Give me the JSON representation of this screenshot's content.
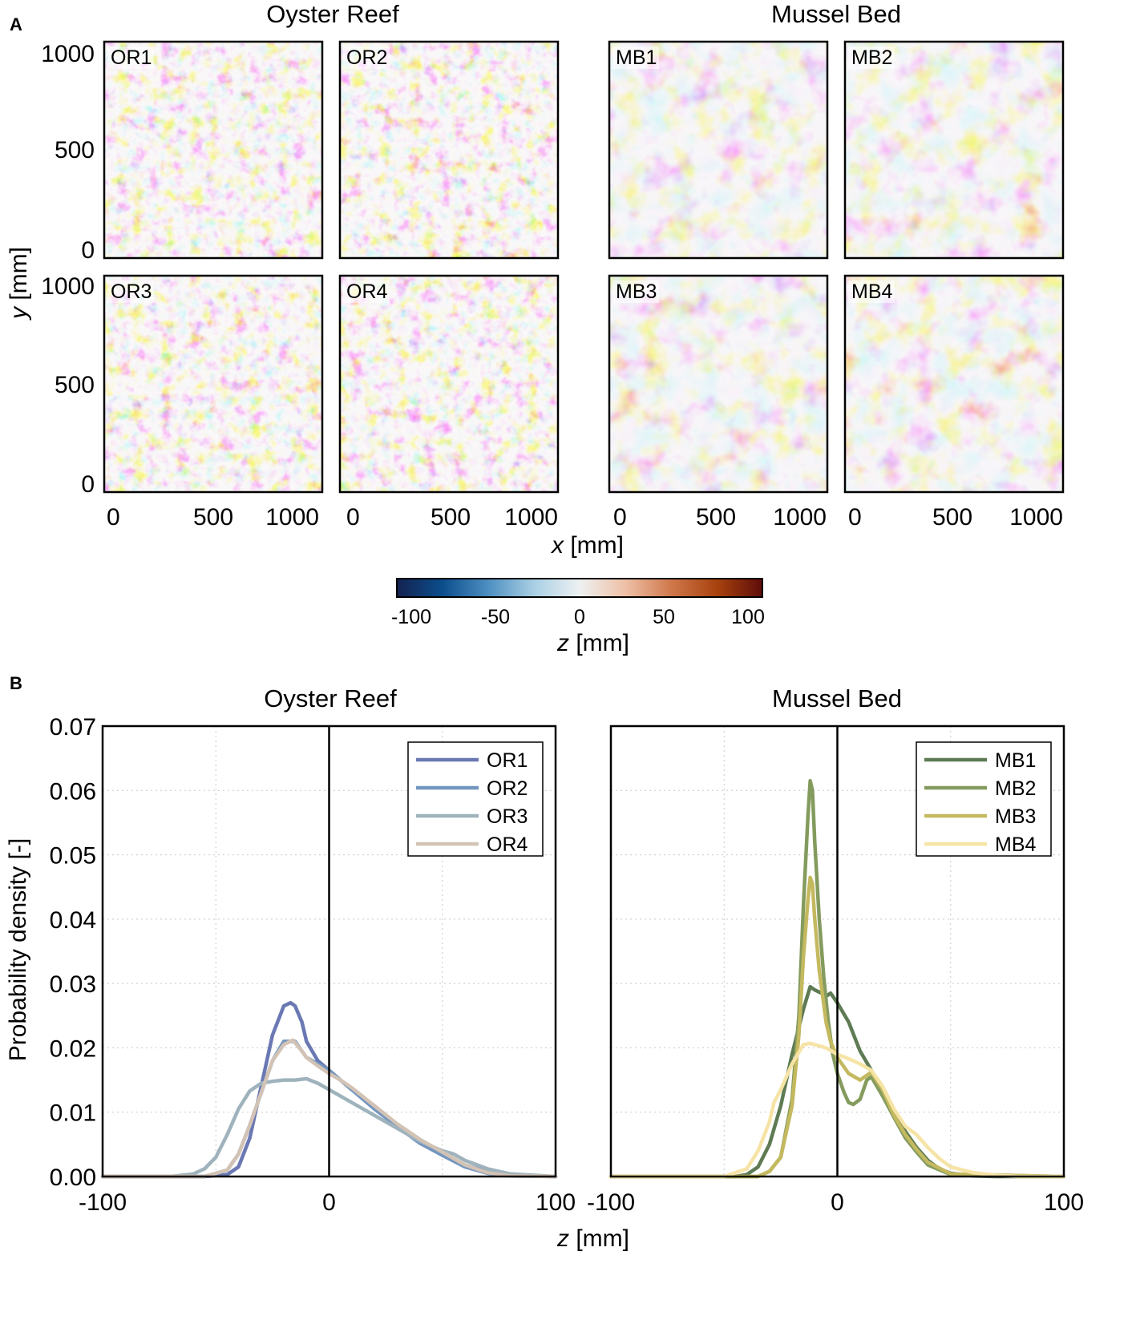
{
  "panel_a": {
    "letter": "A",
    "titles": [
      "Oyster Reef",
      "Mussel Bed"
    ],
    "tiles": [
      "OR1",
      "OR2",
      "OR3",
      "OR4",
      "MB1",
      "MB2",
      "MB3",
      "MB4"
    ],
    "y_ticks": [
      "1000",
      "500",
      "0"
    ],
    "x_ticks": [
      "0",
      "500",
      "1000"
    ],
    "xlabel_var": "x",
    "xlabel_unit": " [mm]",
    "ylabel_var": "y",
    "ylabel_unit": " [mm]",
    "colorbar": {
      "ticks": [
        "-100",
        "-50",
        "0",
        "50",
        "100"
      ],
      "label_var": "z",
      "label_unit": " [mm]",
      "colors": [
        "#14224f",
        "#0c4e8c",
        "#4d8fc1",
        "#a9cfe4",
        "#eef1f2",
        "#eec0a6",
        "#d0784c",
        "#a8420e",
        "#5e0d0a"
      ]
    }
  },
  "panel_b": {
    "letter": "B",
    "ylabel": "Probability density [-]",
    "xlabel_var": "z",
    "xlabel_unit": " [mm]"
  },
  "chart_data": [
    {
      "type": "line",
      "title": "Oyster Reef",
      "xlabel": "z [mm]",
      "ylabel": "Probability density [-]",
      "xlim": [
        -100,
        100
      ],
      "ylim": [
        0,
        0.07
      ],
      "x_ticks": [
        "-100",
        "0",
        "100"
      ],
      "y_ticks": [
        "0.00",
        "0.01",
        "0.02",
        "0.03",
        "0.04",
        "0.05",
        "0.06",
        "0.07"
      ],
      "grid": true,
      "legend_position": "top-right",
      "series": [
        {
          "name": "OR1",
          "color": "#6a78b3",
          "x": [
            -100,
            -55,
            -45,
            -40,
            -35,
            -30,
            -25,
            -20,
            -17,
            -15,
            -12,
            -10,
            -5,
            0,
            5,
            10,
            20,
            30,
            40,
            50,
            60,
            70,
            80,
            100
          ],
          "y": [
            0,
            0,
            0.0003,
            0.0015,
            0.006,
            0.014,
            0.022,
            0.0265,
            0.027,
            0.0265,
            0.024,
            0.021,
            0.018,
            0.0165,
            0.015,
            0.0135,
            0.011,
            0.008,
            0.0055,
            0.0035,
            0.0018,
            0.0007,
            0.0002,
            0
          ]
        },
        {
          "name": "OR2",
          "color": "#7396c0",
          "x": [
            -100,
            -55,
            -45,
            -40,
            -35,
            -30,
            -25,
            -20,
            -15,
            -12,
            -10,
            -5,
            0,
            5,
            10,
            20,
            30,
            40,
            50,
            60,
            70,
            80,
            100
          ],
          "y": [
            0,
            0,
            0.001,
            0.0035,
            0.008,
            0.013,
            0.018,
            0.021,
            0.021,
            0.0195,
            0.0185,
            0.0175,
            0.0165,
            0.015,
            0.0135,
            0.0105,
            0.0078,
            0.0052,
            0.0033,
            0.0015,
            0.0005,
            0.0001,
            0
          ]
        },
        {
          "name": "OR3",
          "color": "#9fb3bd",
          "x": [
            -100,
            -70,
            -60,
            -55,
            -50,
            -45,
            -40,
            -35,
            -30,
            -25,
            -20,
            -15,
            -10,
            -5,
            0,
            10,
            20,
            30,
            40,
            50,
            55,
            60,
            70,
            80,
            100
          ],
          "y": [
            0,
            0,
            0.0004,
            0.0012,
            0.003,
            0.0065,
            0.0105,
            0.0133,
            0.0145,
            0.0148,
            0.015,
            0.015,
            0.0152,
            0.0145,
            0.0135,
            0.0115,
            0.0095,
            0.0075,
            0.0055,
            0.004,
            0.0035,
            0.0025,
            0.0012,
            0.0004,
            0
          ]
        },
        {
          "name": "OR4",
          "color": "#d3c3b5",
          "x": [
            -100,
            -55,
            -45,
            -40,
            -35,
            -30,
            -25,
            -20,
            -16,
            -12,
            -10,
            -5,
            0,
            5,
            10,
            20,
            30,
            40,
            50,
            60,
            70,
            80,
            100
          ],
          "y": [
            0,
            0,
            0.001,
            0.0035,
            0.008,
            0.013,
            0.018,
            0.0205,
            0.0212,
            0.0195,
            0.0185,
            0.0172,
            0.016,
            0.015,
            0.0138,
            0.011,
            0.0082,
            0.0058,
            0.0038,
            0.0018,
            0.0006,
            0.0001,
            0
          ]
        }
      ]
    },
    {
      "type": "line",
      "title": "Mussel Bed",
      "xlabel": "z [mm]",
      "ylabel": "Probability density [-]",
      "xlim": [
        -100,
        100
      ],
      "ylim": [
        0,
        0.07
      ],
      "x_ticks": [
        "-100",
        "0",
        "100"
      ],
      "y_ticks": [],
      "grid": true,
      "legend_position": "top-right",
      "series": [
        {
          "name": "MB1",
          "color": "#5e7b54",
          "x": [
            -100,
            -45,
            -40,
            -35,
            -30,
            -25,
            -20,
            -15,
            -12,
            -10,
            -7,
            -5,
            -3,
            0,
            5,
            10,
            15,
            20,
            25,
            30,
            35,
            40,
            45,
            50,
            60,
            70,
            100
          ],
          "y": [
            0,
            0,
            0.0003,
            0.0015,
            0.005,
            0.011,
            0.019,
            0.026,
            0.0295,
            0.029,
            0.0285,
            0.028,
            0.0285,
            0.027,
            0.024,
            0.0195,
            0.0165,
            0.0135,
            0.01,
            0.007,
            0.0045,
            0.0025,
            0.0012,
            0.0005,
            0.0001,
            0,
            0
          ]
        },
        {
          "name": "MB2",
          "color": "#849b5e",
          "x": [
            -100,
            -35,
            -30,
            -25,
            -20,
            -17,
            -15,
            -13,
            -12,
            -11,
            -10,
            -8,
            -6,
            -4,
            -2,
            0,
            3,
            5,
            7,
            10,
            13,
            15,
            20,
            25,
            30,
            35,
            40,
            50,
            100
          ],
          "y": [
            0,
            0,
            0.0008,
            0.003,
            0.012,
            0.025,
            0.042,
            0.056,
            0.0615,
            0.06,
            0.052,
            0.04,
            0.031,
            0.024,
            0.019,
            0.016,
            0.013,
            0.0115,
            0.0112,
            0.012,
            0.015,
            0.0155,
            0.0125,
            0.0092,
            0.006,
            0.0038,
            0.0018,
            0.0003,
            0
          ]
        },
        {
          "name": "MB3",
          "color": "#c4b95f",
          "x": [
            -100,
            -35,
            -30,
            -25,
            -20,
            -17,
            -15,
            -13,
            -12,
            -11,
            -10,
            -8,
            -5,
            -3,
            0,
            5,
            10,
            15,
            20,
            25,
            30,
            35,
            40,
            50,
            100
          ],
          "y": [
            0,
            0,
            0.0008,
            0.003,
            0.011,
            0.022,
            0.034,
            0.043,
            0.0465,
            0.0455,
            0.04,
            0.032,
            0.024,
            0.021,
            0.0185,
            0.016,
            0.015,
            0.0162,
            0.0135,
            0.0095,
            0.0065,
            0.0042,
            0.0022,
            0.0004,
            0
          ]
        },
        {
          "name": "MB4",
          "color": "#f6e4a6",
          "x": [
            -100,
            -50,
            -40,
            -35,
            -30,
            -28,
            -25,
            -20,
            -15,
            -12,
            -10,
            -5,
            0,
            5,
            10,
            15,
            20,
            25,
            30,
            35,
            40,
            45,
            50,
            60,
            70,
            80,
            100
          ],
          "y": [
            0,
            0,
            0.0012,
            0.004,
            0.0085,
            0.0115,
            0.0135,
            0.0175,
            0.0205,
            0.0207,
            0.0205,
            0.02,
            0.019,
            0.0183,
            0.0175,
            0.0165,
            0.014,
            0.0105,
            0.0078,
            0.0065,
            0.0045,
            0.0028,
            0.0015,
            0.0006,
            0.0002,
            0,
            0
          ]
        }
      ]
    }
  ]
}
